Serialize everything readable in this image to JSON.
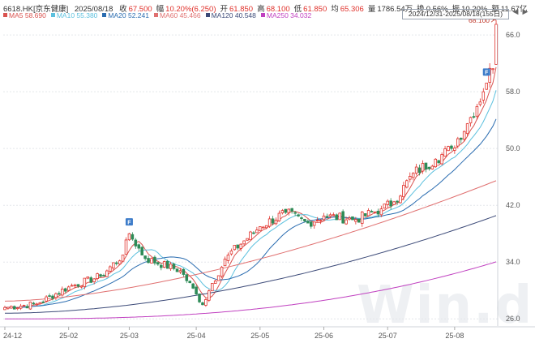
{
  "header": {
    "code": "6618.HK[京东健康]",
    "date": "2025/08/18",
    "fields": [
      {
        "label": "收",
        "value": "67.500",
        "red": true
      },
      {
        "label": "幅",
        "value": "10.20%(6.250)",
        "red": true
      },
      {
        "label": "开",
        "value": "61.850",
        "red": true
      },
      {
        "label": "高",
        "value": "68.100",
        "red": true
      },
      {
        "label": "低",
        "value": "61.850",
        "red": true
      },
      {
        "label": "均",
        "value": "65.306",
        "red": true
      },
      {
        "label": "量",
        "value": "1786.54万",
        "red": false
      },
      {
        "label": "换",
        "value": "0.56%",
        "red": false
      },
      {
        "label": "振",
        "value": "10.20%",
        "red": false
      },
      {
        "label": "额",
        "value": "11.67亿",
        "red": false
      }
    ],
    "range_label": "2024/12/31-2025/08/18(155日)",
    "nav_prev": "◀",
    "nav_next": "▶"
  },
  "ma_legend": [
    {
      "label": "MA5",
      "value": "58.690",
      "color": "#d9534f"
    },
    {
      "label": "MA10",
      "value": "55.380",
      "color": "#5bc0de"
    },
    {
      "label": "MA20",
      "value": "52.241",
      "color": "#2a6cb0"
    },
    {
      "label": "MA60",
      "value": "45.466",
      "color": "#e07070"
    },
    {
      "label": "MA120",
      "value": "40.548",
      "color": "#3c4a78"
    },
    {
      "label": "MA250",
      "value": "34.032",
      "color": "#c040c0"
    }
  ],
  "watermark": "Win.d",
  "colors": {
    "up": "#e0312b",
    "down": "#2e8b57",
    "grid": "#e4e6ea",
    "axis": "#555555"
  },
  "chart_data": {
    "type": "candlestick",
    "ylim": [
      25,
      67.5
    ],
    "y_ticks": [
      "26.0",
      "34.0",
      "42.0",
      "50.0",
      "58.0",
      "66.0"
    ],
    "x_ticks": [
      {
        "label": "24-12",
        "index": 0
      },
      {
        "label": "25-02",
        "index": 20
      },
      {
        "label": "25-03",
        "index": 39
      },
      {
        "label": "25-04",
        "index": 60
      },
      {
        "label": "25-05",
        "index": 80
      },
      {
        "label": "25-06",
        "index": 100
      },
      {
        "label": "25-07",
        "index": 120
      },
      {
        "label": "25-08",
        "index": 141
      }
    ],
    "anchors": {
      "candle_count": 155,
      "closes": [
        [
          0,
          27.6
        ],
        [
          10,
          28.1
        ],
        [
          20,
          30.5
        ],
        [
          30,
          32.0
        ],
        [
          37,
          35.0
        ],
        [
          39,
          38.0
        ],
        [
          44,
          34.5
        ],
        [
          55,
          32.8
        ],
        [
          60,
          29.5
        ],
        [
          62,
          28.0
        ],
        [
          65,
          31.0
        ],
        [
          70,
          35.0
        ],
        [
          80,
          39.0
        ],
        [
          88,
          41.0
        ],
        [
          95,
          39.5
        ],
        [
          100,
          40.5
        ],
        [
          110,
          40.0
        ],
        [
          118,
          41.5
        ],
        [
          122,
          42.5
        ],
        [
          128,
          46.5
        ],
        [
          135,
          48.5
        ],
        [
          140,
          50.0
        ],
        [
          145,
          53.5
        ],
        [
          150,
          58.0
        ],
        [
          152,
          61.3
        ],
        [
          153,
          61.25
        ],
        [
          154,
          67.5
        ]
      ]
    },
    "ma_end_values": {
      "MA5": 58.69,
      "MA10": 55.38,
      "MA20": 52.241,
      "MA60": 45.466,
      "MA120": 40.548,
      "MA250": 34.032
    },
    "annotations": [
      {
        "type": "flag",
        "label": "F",
        "index": 39
      },
      {
        "type": "flag",
        "label": "F",
        "index": 151
      },
      {
        "type": "max-label",
        "label": "68.100",
        "index": 154,
        "value": 68.1
      }
    ]
  }
}
